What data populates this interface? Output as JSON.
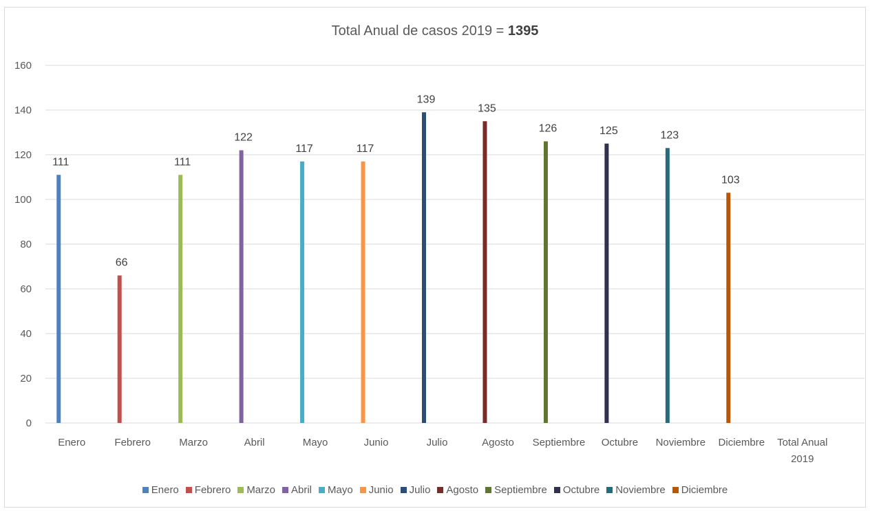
{
  "chart_data": {
    "type": "bar",
    "title": "Total Anual de casos 2019 = ",
    "title_bold": "1395",
    "categories": [
      "Enero",
      "Febrero",
      "Marzo",
      "Abril",
      "Mayo",
      "Junio",
      "Julio",
      "Agosto",
      "Septiembre",
      "Octubre",
      "Noviembre",
      "Diciembre",
      "Total Anual 2019"
    ],
    "category_label_lines": [
      [
        "Enero"
      ],
      [
        "Febrero"
      ],
      [
        "Marzo"
      ],
      [
        "Abril"
      ],
      [
        "Mayo"
      ],
      [
        "Junio"
      ],
      [
        "Julio"
      ],
      [
        "Agosto"
      ],
      [
        "Septiembre"
      ],
      [
        "Octubre"
      ],
      [
        "Noviembre"
      ],
      [
        "Diciembre"
      ],
      [
        "Total Anual",
        "2019"
      ]
    ],
    "series": [
      {
        "name": "Enero",
        "color": "#4f81bd",
        "category_index": 0,
        "value": 111
      },
      {
        "name": "Febrero",
        "color": "#c0504d",
        "category_index": 1,
        "value": 66
      },
      {
        "name": "Marzo",
        "color": "#9bbb59",
        "category_index": 2,
        "value": 111
      },
      {
        "name": "Abril",
        "color": "#8064a2",
        "category_index": 3,
        "value": 122
      },
      {
        "name": "Mayo",
        "color": "#4bacc6",
        "category_index": 4,
        "value": 117
      },
      {
        "name": "Junio",
        "color": "#f79646",
        "category_index": 5,
        "value": 117
      },
      {
        "name": "Julio",
        "color": "#2c4d75",
        "category_index": 6,
        "value": 139
      },
      {
        "name": "Agosto",
        "color": "#772c2a",
        "category_index": 7,
        "value": 135
      },
      {
        "name": "Septiembre",
        "color": "#5f7530",
        "category_index": 8,
        "value": 126
      },
      {
        "name": "Octubre",
        "color": "#31304f",
        "category_index": 9,
        "value": 125
      },
      {
        "name": "Noviembre",
        "color": "#276a7c",
        "category_index": 10,
        "value": 123
      },
      {
        "name": "Diciembre",
        "color": "#b65708",
        "category_index": 11,
        "value": 103
      }
    ],
    "yticks": [
      0,
      20,
      40,
      60,
      80,
      100,
      120,
      140,
      160
    ],
    "ylim": [
      0,
      160
    ],
    "xlabel": "",
    "ylabel": "",
    "grid": true,
    "legend_position": "bottom"
  }
}
